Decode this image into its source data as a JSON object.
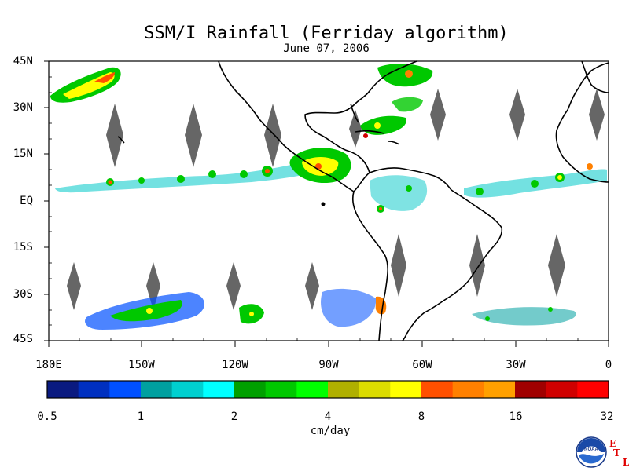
{
  "title": "SSM/I Rainfall (Ferriday algorithm)",
  "date": "June 07, 2006",
  "latitude_labels": [
    "45N",
    "30N",
    "15N",
    "EQ",
    "15S",
    "30S",
    "45S"
  ],
  "longitude_labels": [
    "180E",
    "150W",
    "120W",
    "90W",
    "60W",
    "30W",
    "0"
  ],
  "colorbar": {
    "tick_labels": [
      "0.5",
      "1",
      "2",
      "4",
      "8",
      "16",
      "32"
    ],
    "units": "cm/day",
    "colors": [
      "#0a1a80",
      "#0030c0",
      "#0050ff",
      "#00a0a0",
      "#00d0d0",
      "#00ffff",
      "#00a000",
      "#00c800",
      "#00ff00",
      "#b0b000",
      "#dcdc00",
      "#ffff00",
      "#ff5000",
      "#ff8000",
      "#ffa000",
      "#a00000",
      "#d00000",
      "#ff0000"
    ]
  },
  "map": {
    "no_data_color": "#666666",
    "coastline_color": "#000000"
  },
  "logo": {
    "name": "NOAA",
    "etl_letters": [
      "E",
      "T",
      "L"
    ]
  }
}
